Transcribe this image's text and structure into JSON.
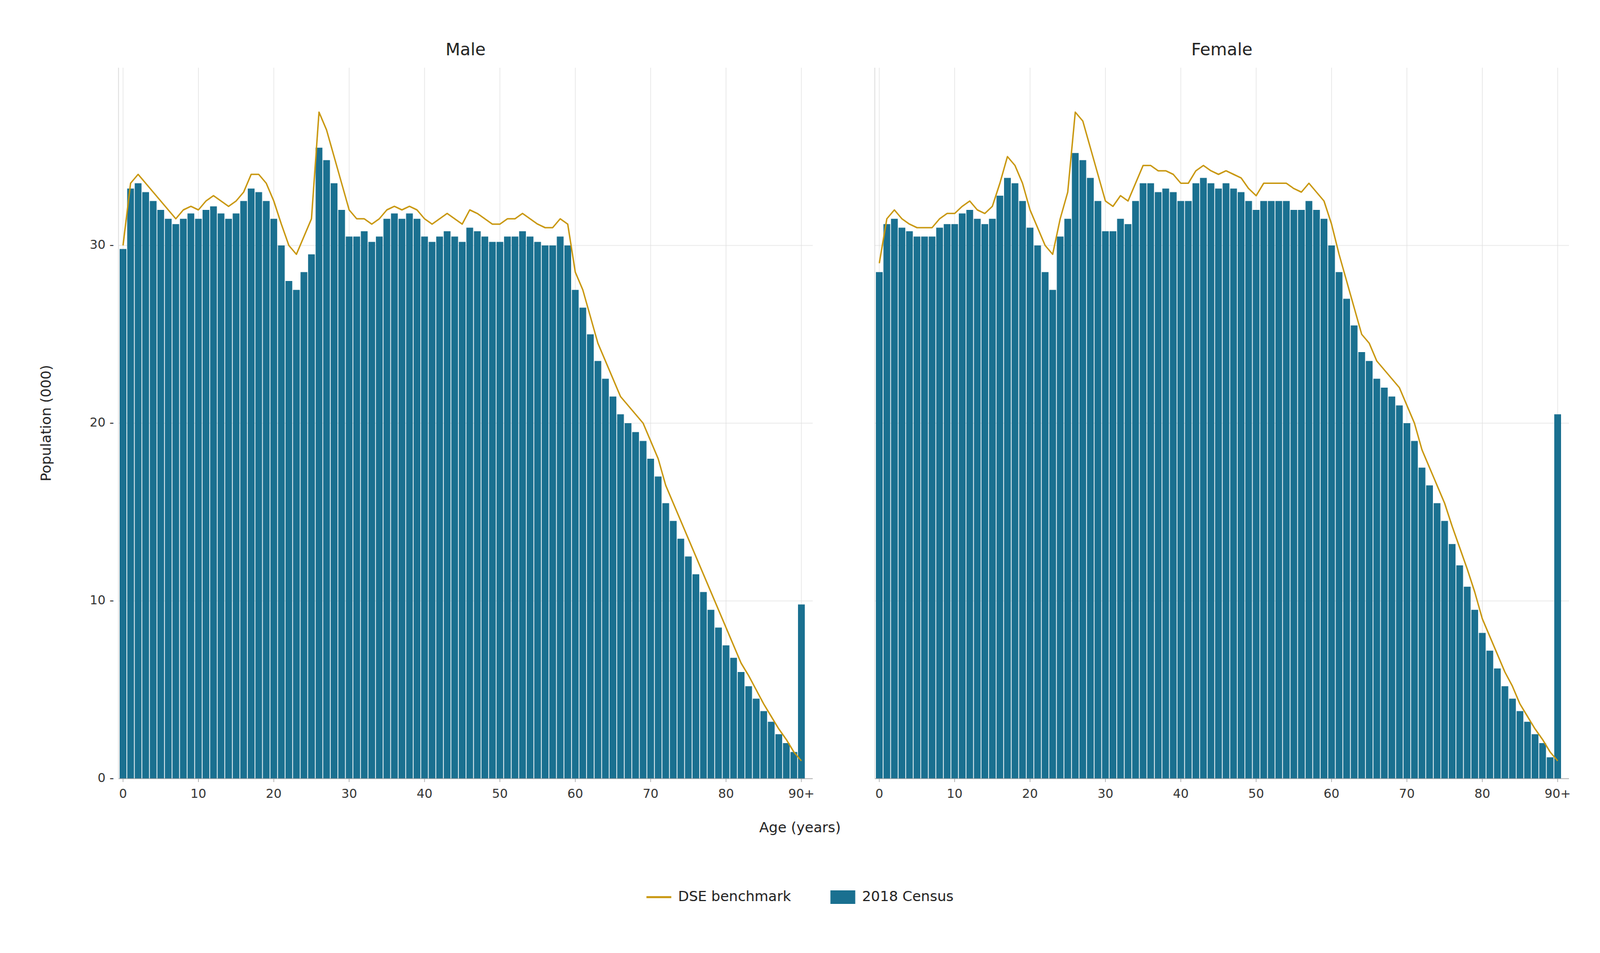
{
  "chart_data": [
    {
      "type": "bar",
      "title": "Male",
      "xlabel": "Age (years)",
      "ylabel": "Population (000)",
      "x": [
        0,
        1,
        2,
        3,
        4,
        5,
        6,
        7,
        8,
        9,
        10,
        11,
        12,
        13,
        14,
        15,
        16,
        17,
        18,
        19,
        20,
        21,
        22,
        23,
        24,
        25,
        26,
        27,
        28,
        29,
        30,
        31,
        32,
        33,
        34,
        35,
        36,
        37,
        38,
        39,
        40,
        41,
        42,
        43,
        44,
        45,
        46,
        47,
        48,
        49,
        50,
        51,
        52,
        53,
        54,
        55,
        56,
        57,
        58,
        59,
        60,
        61,
        62,
        63,
        64,
        65,
        66,
        67,
        68,
        69,
        70,
        71,
        72,
        73,
        74,
        75,
        76,
        77,
        78,
        79,
        80,
        81,
        82,
        83,
        84,
        85,
        86,
        87,
        88,
        89,
        90
      ],
      "xlim": [
        -0.6,
        91.5
      ],
      "xticks": [
        0,
        10,
        20,
        30,
        40,
        50,
        60,
        70,
        80,
        {
          "value": 90,
          "label": "90+"
        }
      ],
      "ylim": [
        0,
        40
      ],
      "yticks": [
        {
          "value": 0,
          "label": "0 -"
        },
        {
          "value": 10,
          "label": "10 -"
        },
        {
          "value": 20,
          "label": "20 -"
        },
        {
          "value": 30,
          "label": "30 -"
        }
      ],
      "grid": true,
      "legend": "bottom",
      "series": [
        {
          "name": "DSE benchmark",
          "type": "line",
          "color": "#c8960c",
          "values": [
            30.0,
            33.5,
            34.0,
            33.5,
            33.0,
            32.5,
            32.0,
            31.5,
            32.0,
            32.2,
            32.0,
            32.5,
            32.8,
            32.5,
            32.2,
            32.5,
            33.0,
            34.0,
            34.0,
            33.5,
            32.5,
            31.2,
            30.0,
            29.5,
            30.5,
            31.5,
            37.5,
            36.5,
            35.0,
            33.5,
            32.0,
            31.5,
            31.5,
            31.2,
            31.5,
            32.0,
            32.2,
            32.0,
            32.2,
            32.0,
            31.5,
            31.2,
            31.5,
            31.8,
            31.5,
            31.2,
            32.0,
            31.8,
            31.5,
            31.2,
            31.2,
            31.5,
            31.5,
            31.8,
            31.5,
            31.2,
            31.0,
            31.0,
            31.5,
            31.2,
            28.5,
            27.5,
            26.0,
            24.5,
            23.5,
            22.5,
            21.5,
            21.0,
            20.5,
            20.0,
            19.0,
            18.0,
            16.5,
            15.5,
            14.5,
            13.5,
            12.5,
            11.5,
            10.5,
            9.5,
            8.5,
            7.5,
            6.5,
            5.8,
            5.0,
            4.2,
            3.5,
            2.8,
            2.2,
            1.5,
            1.0
          ]
        },
        {
          "name": "2018 Census",
          "type": "bar",
          "color": "#1a7090",
          "values": [
            29.8,
            33.2,
            33.5,
            33.0,
            32.5,
            32.0,
            31.5,
            31.2,
            31.5,
            31.8,
            31.5,
            32.0,
            32.2,
            31.8,
            31.5,
            31.8,
            32.5,
            33.2,
            33.0,
            32.5,
            31.5,
            30.0,
            28.0,
            27.5,
            28.5,
            29.5,
            35.5,
            34.8,
            33.5,
            32.0,
            30.5,
            30.5,
            30.8,
            30.2,
            30.5,
            31.5,
            31.8,
            31.5,
            31.8,
            31.5,
            30.5,
            30.2,
            30.5,
            30.8,
            30.5,
            30.2,
            31.0,
            30.8,
            30.5,
            30.2,
            30.2,
            30.5,
            30.5,
            30.8,
            30.5,
            30.2,
            30.0,
            30.0,
            30.5,
            30.0,
            27.5,
            26.5,
            25.0,
            23.5,
            22.5,
            21.5,
            20.5,
            20.0,
            19.5,
            19.0,
            18.0,
            17.0,
            15.5,
            14.5,
            13.5,
            12.5,
            11.5,
            10.5,
            9.5,
            8.5,
            7.5,
            6.8,
            6.0,
            5.2,
            4.5,
            3.8,
            3.2,
            2.5,
            2.0,
            1.5,
            9.8
          ]
        }
      ]
    },
    {
      "type": "bar",
      "title": "Female",
      "x": [
        0,
        1,
        2,
        3,
        4,
        5,
        6,
        7,
        8,
        9,
        10,
        11,
        12,
        13,
        14,
        15,
        16,
        17,
        18,
        19,
        20,
        21,
        22,
        23,
        24,
        25,
        26,
        27,
        28,
        29,
        30,
        31,
        32,
        33,
        34,
        35,
        36,
        37,
        38,
        39,
        40,
        41,
        42,
        43,
        44,
        45,
        46,
        47,
        48,
        49,
        50,
        51,
        52,
        53,
        54,
        55,
        56,
        57,
        58,
        59,
        60,
        61,
        62,
        63,
        64,
        65,
        66,
        67,
        68,
        69,
        70,
        71,
        72,
        73,
        74,
        75,
        76,
        77,
        78,
        79,
        80,
        81,
        82,
        83,
        84,
        85,
        86,
        87,
        88,
        89,
        90
      ],
      "xlim": [
        -0.6,
        91.5
      ],
      "xticks": [
        0,
        10,
        20,
        30,
        40,
        50,
        60,
        70,
        80,
        {
          "value": 90,
          "label": "90+"
        }
      ],
      "ylim": [
        0,
        40
      ],
      "yticks": [
        0,
        10,
        20,
        30
      ],
      "grid": true,
      "tick_labels": "x",
      "series": [
        {
          "type": "line",
          "color": "#c8960c",
          "values": [
            29.0,
            31.5,
            32.0,
            31.5,
            31.2,
            31.0,
            31.0,
            31.0,
            31.5,
            31.8,
            31.8,
            32.2,
            32.5,
            32.0,
            31.8,
            32.2,
            33.5,
            35.0,
            34.5,
            33.5,
            32.0,
            31.0,
            30.0,
            29.5,
            31.5,
            33.0,
            37.5,
            37.0,
            35.5,
            34.0,
            32.5,
            32.2,
            32.8,
            32.5,
            33.5,
            34.5,
            34.5,
            34.2,
            34.2,
            34.0,
            33.5,
            33.5,
            34.2,
            34.5,
            34.2,
            34.0,
            34.2,
            34.0,
            33.8,
            33.2,
            32.8,
            33.5,
            33.5,
            33.5,
            33.5,
            33.2,
            33.0,
            33.5,
            33.0,
            32.5,
            31.2,
            29.5,
            28.0,
            26.5,
            25.0,
            24.5,
            23.5,
            23.0,
            22.5,
            22.0,
            21.0,
            20.0,
            18.5,
            17.5,
            16.5,
            15.5,
            14.2,
            13.0,
            11.8,
            10.5,
            9.0,
            8.0,
            7.0,
            6.0,
            5.2,
            4.2,
            3.5,
            2.8,
            2.2,
            1.5,
            1.0
          ]
        },
        {
          "type": "bar",
          "color": "#1a7090",
          "values": [
            28.5,
            31.2,
            31.5,
            31.0,
            30.8,
            30.5,
            30.5,
            30.5,
            31.0,
            31.2,
            31.2,
            31.8,
            32.0,
            31.5,
            31.2,
            31.5,
            32.8,
            33.8,
            33.5,
            32.5,
            31.0,
            30.0,
            28.5,
            27.5,
            30.5,
            31.5,
            35.2,
            34.8,
            33.8,
            32.5,
            30.8,
            30.8,
            31.5,
            31.2,
            32.5,
            33.5,
            33.5,
            33.0,
            33.2,
            33.0,
            32.5,
            32.5,
            33.5,
            33.8,
            33.5,
            33.2,
            33.5,
            33.2,
            33.0,
            32.5,
            32.0,
            32.5,
            32.5,
            32.5,
            32.5,
            32.0,
            32.0,
            32.5,
            32.0,
            31.5,
            30.0,
            28.5,
            27.0,
            25.5,
            24.0,
            23.5,
            22.5,
            22.0,
            21.5,
            21.0,
            20.0,
            19.0,
            17.5,
            16.5,
            15.5,
            14.5,
            13.2,
            12.0,
            10.8,
            9.5,
            8.2,
            7.2,
            6.2,
            5.2,
            4.5,
            3.8,
            3.2,
            2.5,
            2.0,
            1.2,
            20.5
          ]
        }
      ]
    }
  ]
}
